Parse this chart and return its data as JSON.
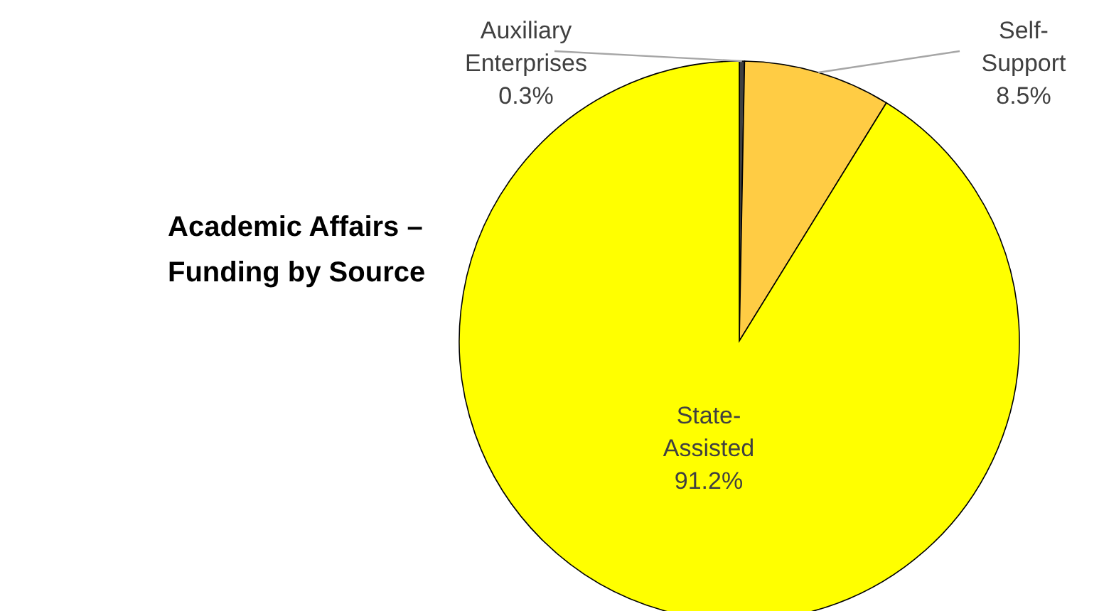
{
  "chart_data": {
    "type": "pie",
    "title": "Academic Affairs – Funding by Source",
    "categories": [
      "Auxiliary Enterprises",
      "Self-Support",
      "State-Assisted"
    ],
    "values": [
      0.3,
      8.5,
      91.2
    ],
    "colors": [
      "#404040",
      "#ffcc44",
      "#ffff00"
    ],
    "value_labels": [
      "0.3%",
      "8.5%",
      "91.2%"
    ]
  }
}
